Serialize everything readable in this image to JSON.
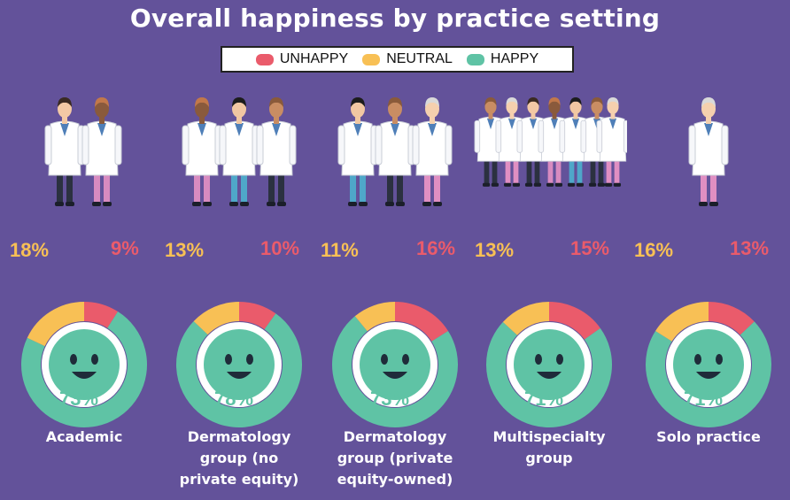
{
  "chart_data": {
    "type": "pie",
    "title": "Overall happiness by practice setting",
    "legend": [
      {
        "label": "UNHAPPY",
        "color": "#ea5b6b"
      },
      {
        "label": "NEUTRAL",
        "color": "#f8c055"
      },
      {
        "label": "HAPPY",
        "color": "#5fc3a5"
      }
    ],
    "legend_placement": "top-center",
    "categories": [
      {
        "label": "Academic",
        "unhappy": 9,
        "neutral": 18,
        "happy": 73,
        "unhappy_label": "9%",
        "neutral_label": "18%",
        "happy_label": "73%",
        "people": 2
      },
      {
        "label": "Dermatology group (no private equity)",
        "unhappy": 10,
        "neutral": 13,
        "happy": 78,
        "unhappy_label": "10%",
        "neutral_label": "13%",
        "happy_label": "78%",
        "people": 3
      },
      {
        "label": "Dermatology group (private equity-owned)",
        "unhappy": 16,
        "neutral": 11,
        "happy": 73,
        "unhappy_label": "16%",
        "neutral_label": "11%",
        "happy_label": "73%",
        "people": 3
      },
      {
        "label": "Multispecialty group",
        "unhappy": 15,
        "neutral": 13,
        "happy": 71,
        "unhappy_label": "15%",
        "neutral_label": "13%",
        "happy_label": "71%",
        "people": 7
      },
      {
        "label": "Solo practice",
        "unhappy": 13,
        "neutral": 16,
        "happy": 71,
        "unhappy_label": "13%",
        "neutral_label": "16%",
        "happy_label": "71%",
        "people": 1
      }
    ],
    "colors": {
      "background": "#63529a",
      "face": "#5fc3a5",
      "face_features": "#1f2b3a",
      "ring_gap": "#ffffff"
    }
  },
  "category_lines": [
    "Academic",
    "Dermatology\ngroup (no\nprivate equity)",
    "Dermatology\ngroup (private\nequity-owned)",
    "Multispecialty\ngroup",
    "Solo practice"
  ]
}
